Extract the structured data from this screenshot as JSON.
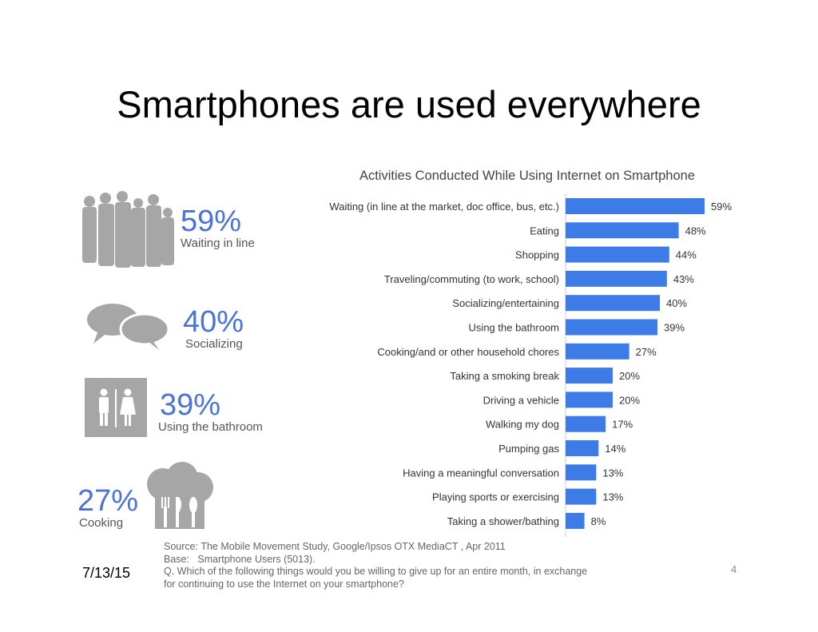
{
  "slide": {
    "title": "Smartphones are used everywhere",
    "date": "7/13/15",
    "page": "4"
  },
  "stats": [
    {
      "pct": "59%",
      "label": "Waiting in line",
      "icon": "people-silhouette-icon"
    },
    {
      "pct": "40%",
      "label": "Socializing",
      "icon": "speech-bubbles-icon"
    },
    {
      "pct": "39%",
      "label": "Using the bathroom",
      "icon": "restroom-icon"
    },
    {
      "pct": "27%",
      "label": "Cooking",
      "icon": "chef-hat-utensils-icon"
    }
  ],
  "source": {
    "line1": "Source: The Mobile Movement Study, Google/Ipsos OTX MediaCT , Apr 2011",
    "line2": "Base:   Smartphone Users (5013).",
    "line3": "Q. Which of the following things would you be willing to give up for an entire month, in exchange",
    "line4": "for continuing to use the Internet on your smartphone?"
  },
  "colors": {
    "bar": "#3d7be6",
    "accent_text": "#4a73d8",
    "icon_gray": "#a6a6a6"
  },
  "chart_data": {
    "type": "bar",
    "orientation": "horizontal",
    "title": "Activities Conducted While Using Internet on Smartphone",
    "categories": [
      "Waiting (in line at the market, doc office, bus, etc.)",
      "Eating",
      "Shopping",
      "Traveling/commuting (to work, school)",
      "Socializing/entertaining",
      "Using the bathroom",
      "Cooking/and or other household chores",
      "Taking a smoking break",
      "Driving a vehicle",
      "Walking my dog",
      "Pumping gas",
      "Having a meaningful conversation",
      "Playing sports or exercising",
      "Taking a shower/bathing"
    ],
    "values": [
      59,
      48,
      44,
      43,
      40,
      39,
      27,
      20,
      20,
      17,
      14,
      13,
      13,
      8
    ],
    "value_labels": [
      "59%",
      "48%",
      "44%",
      "43%",
      "40%",
      "39%",
      "27%",
      "20%",
      "20%",
      "17%",
      "14%",
      "13%",
      "13%",
      "8%"
    ],
    "grid": false
  }
}
